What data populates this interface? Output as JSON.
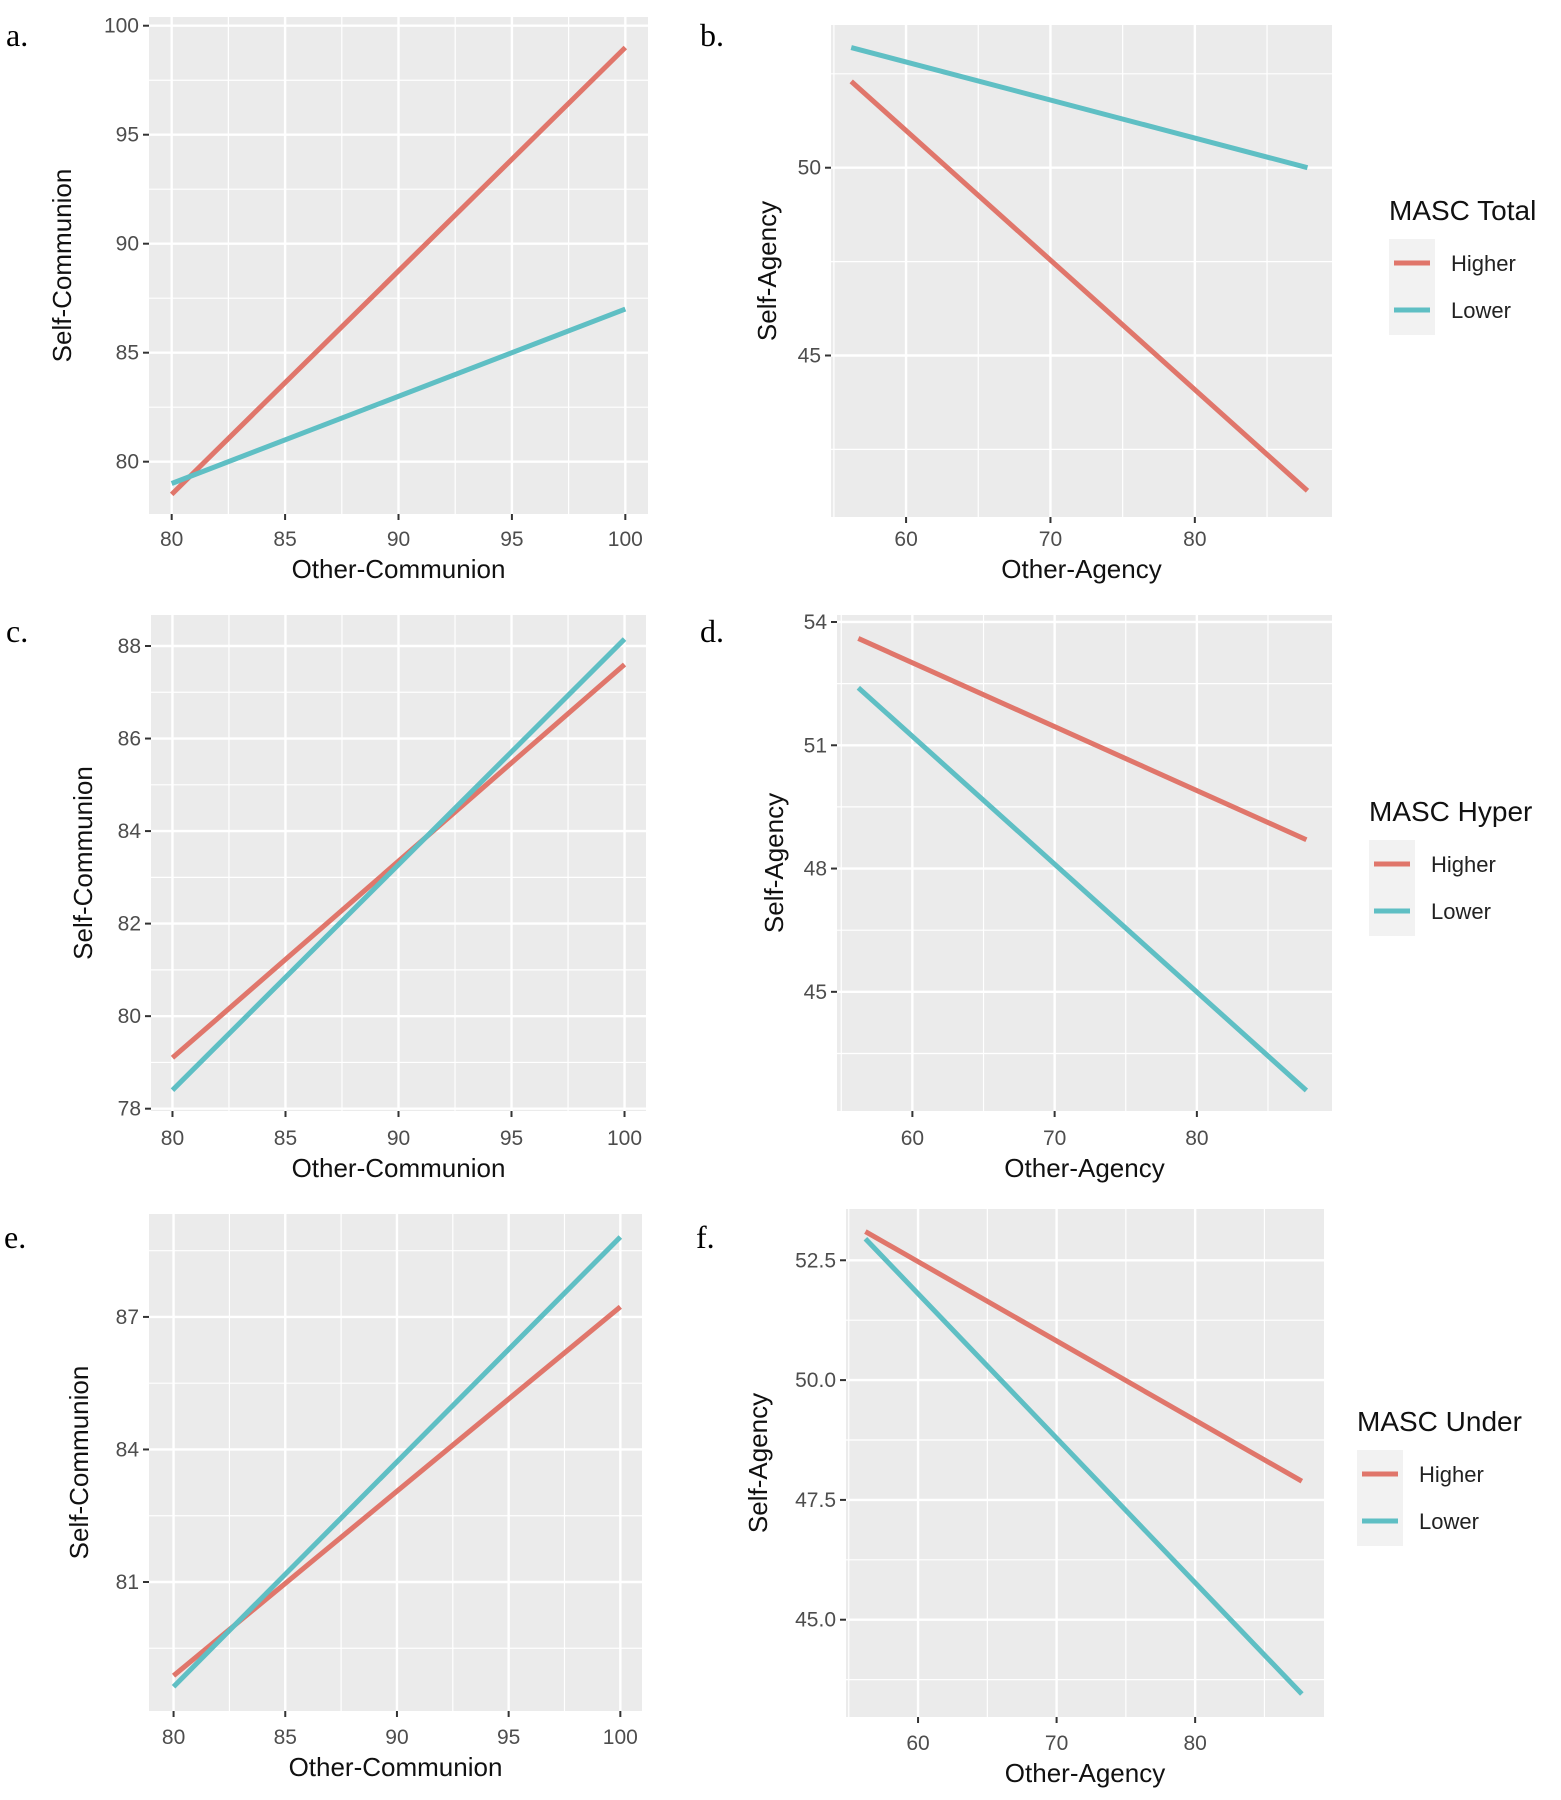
{
  "colors": {
    "Higher": "#e0766b",
    "Lower": "#5fbfc4",
    "panel_bg": "#ebebeb",
    "grid": "#ffffff"
  },
  "chart_data": [
    {
      "type": "line",
      "panel_label": "a.",
      "xlabel": "Other-Communion",
      "ylabel": "Self-Communion",
      "xlim": [
        79,
        101
      ],
      "ylim": [
        77.6,
        100.4
      ],
      "xticks": [
        80,
        85,
        90,
        95,
        100
      ],
      "xtick_labels": [
        "80",
        "85",
        "90",
        "95",
        "100"
      ],
      "yticks": [
        80,
        85,
        90,
        95,
        100
      ],
      "ytick_labels": [
        "80",
        "85",
        "90",
        "95",
        "100"
      ],
      "series": [
        {
          "name": "Higher",
          "x": [
            80,
            100
          ],
          "y": [
            78.5,
            99.0
          ]
        },
        {
          "name": "Lower",
          "x": [
            80,
            100
          ],
          "y": [
            79.0,
            87.0
          ]
        }
      ],
      "legend": null
    },
    {
      "type": "line",
      "panel_label": "b.",
      "xlabel": "Other-Agency",
      "ylabel": "Self-Agency",
      "xlim": [
        54.8,
        89.5
      ],
      "ylim": [
        40.7,
        53.8
      ],
      "xticks": [
        60,
        70,
        80
      ],
      "xtick_labels": [
        "60",
        "70",
        "80"
      ],
      "yticks": [
        45,
        50
      ],
      "ytick_labels": [
        "45",
        "50"
      ],
      "series": [
        {
          "name": "Higher",
          "x": [
            56.2,
            87.8
          ],
          "y": [
            52.3,
            41.4
          ]
        },
        {
          "name": "Lower",
          "x": [
            56.2,
            87.8
          ],
          "y": [
            53.2,
            50.0
          ]
        }
      ],
      "legend": {
        "title": "MASC Total",
        "entries": [
          "Higher",
          "Lower"
        ],
        "placement": "right"
      }
    },
    {
      "type": "line",
      "panel_label": "c.",
      "xlabel": "Other-Communion",
      "ylabel": "Self-Communion",
      "xlim": [
        79.05,
        100.95
      ],
      "ylim": [
        77.95,
        88.67
      ],
      "xticks": [
        80,
        85,
        90,
        95,
        100
      ],
      "xtick_labels": [
        "80",
        "85",
        "90",
        "95",
        "100"
      ],
      "yticks": [
        78,
        80,
        82,
        84,
        86,
        88
      ],
      "ytick_labels": [
        "78",
        "80",
        "82",
        "84",
        "86",
        "88"
      ],
      "series": [
        {
          "name": "Higher",
          "x": [
            80,
            100
          ],
          "y": [
            79.1,
            87.6
          ]
        },
        {
          "name": "Lower",
          "x": [
            80,
            100
          ],
          "y": [
            78.4,
            88.15
          ]
        }
      ],
      "legend": null
    },
    {
      "type": "line",
      "panel_label": "d.",
      "xlabel": "Other-Agency",
      "ylabel": "Self-Agency",
      "xlim": [
        54.7,
        89.5
      ],
      "ylim": [
        42.1,
        54.17
      ],
      "xticks": [
        60,
        70,
        80
      ],
      "xtick_labels": [
        "60",
        "70",
        "80"
      ],
      "yticks": [
        45,
        48,
        51,
        54
      ],
      "ytick_labels": [
        "45",
        "48",
        "51",
        "54"
      ],
      "series": [
        {
          "name": "Higher",
          "x": [
            56.2,
            87.7
          ],
          "y": [
            53.6,
            48.7
          ]
        },
        {
          "name": "Lower",
          "x": [
            56.2,
            87.7
          ],
          "y": [
            52.4,
            42.6
          ]
        }
      ],
      "legend": {
        "title": "MASC Hyper",
        "entries": [
          "Higher",
          "Lower"
        ],
        "placement": "right"
      }
    },
    {
      "type": "line",
      "panel_label": "e.",
      "xlabel": "Other-Communion",
      "ylabel": "Self-Communion",
      "xlim": [
        78.9,
        100.97
      ],
      "ylim": [
        78.08,
        89.33
      ],
      "xticks": [
        80,
        85,
        90,
        95,
        100
      ],
      "xtick_labels": [
        "80",
        "85",
        "90",
        "95",
        "100"
      ],
      "yticks": [
        81,
        84,
        87
      ],
      "ytick_labels": [
        "81",
        "84",
        "87"
      ],
      "series": [
        {
          "name": "Higher",
          "x": [
            80,
            100
          ],
          "y": [
            78.88,
            87.23
          ]
        },
        {
          "name": "Lower",
          "x": [
            80,
            100
          ],
          "y": [
            78.63,
            88.81
          ]
        }
      ],
      "legend": null
    },
    {
      "type": "line",
      "panel_label": "f.",
      "xlabel": "Other-Agency",
      "ylabel": "Self-Agency",
      "xlim": [
        54.8,
        89.3
      ],
      "ylim": [
        42.97,
        53.57
      ],
      "xticks": [
        60,
        70,
        80
      ],
      "xtick_labels": [
        "60",
        "70",
        "80"
      ],
      "yticks": [
        45,
        47.5,
        50,
        52.5
      ],
      "ytick_labels": [
        "45.0",
        "47.5",
        "50.0",
        "52.5"
      ],
      "series": [
        {
          "name": "Higher",
          "x": [
            56.2,
            87.7
          ],
          "y": [
            53.1,
            47.89
          ]
        },
        {
          "name": "Lower",
          "x": [
            56.2,
            87.7
          ],
          "y": [
            52.95,
            43.45
          ]
        }
      ],
      "legend": {
        "title": "MASC Under",
        "entries": [
          "Higher",
          "Lower"
        ],
        "placement": "right"
      }
    }
  ]
}
